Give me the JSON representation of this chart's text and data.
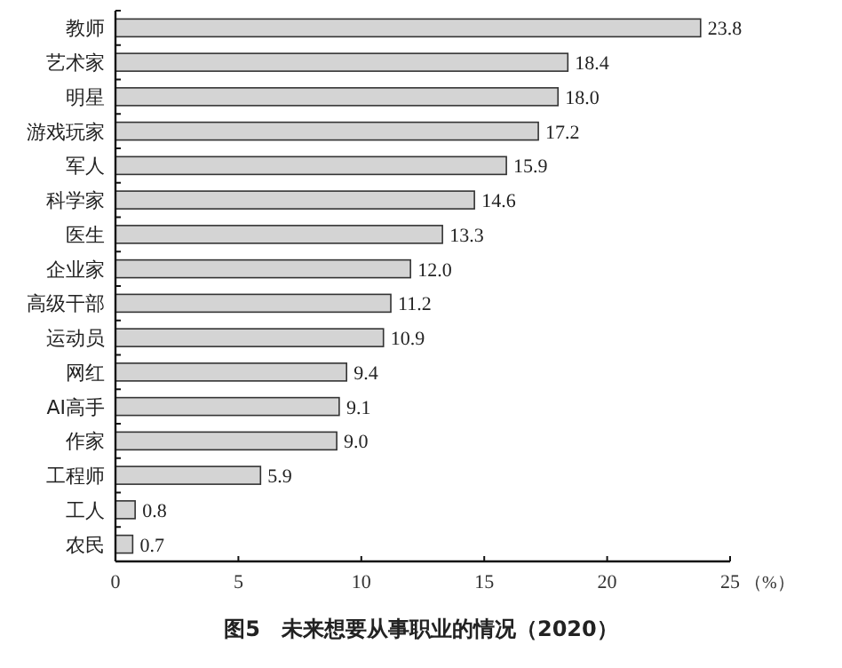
{
  "chart_data": {
    "type": "bar",
    "orientation": "horizontal",
    "title": "图5　未来想要从事职业的情况（2020）",
    "xlabel": "（%）",
    "categories": [
      "教师",
      "艺术家",
      "明星",
      "游戏玩家",
      "军人",
      "科学家",
      "医生",
      "企业家",
      "高级干部",
      "运动员",
      "网红",
      "AI高手",
      "作家",
      "工程师",
      "工人",
      "农民"
    ],
    "values": [
      23.8,
      18.4,
      18.0,
      17.2,
      15.9,
      14.6,
      13.3,
      12.0,
      11.2,
      10.9,
      9.4,
      9.1,
      9.0,
      5.9,
      0.8,
      0.7
    ],
    "value_labels": [
      "23.8",
      "18.4",
      "18.0",
      "17.2",
      "15.9",
      "14.6",
      "13.3",
      "12.0",
      "11.2",
      "10.9",
      "9.4",
      "9.1",
      "9.0",
      "5.9",
      "0.8",
      "0.7"
    ],
    "color": "#d4d4d4",
    "xlim": [
      0,
      25
    ],
    "xticks": [
      0,
      5,
      10,
      15,
      20,
      25
    ]
  }
}
